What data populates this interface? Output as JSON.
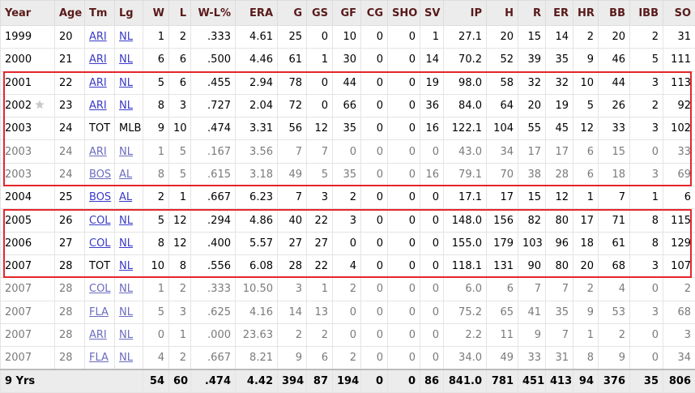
{
  "table": {
    "columns": [
      "Year",
      "Age",
      "Tm",
      "Lg",
      "W",
      "L",
      "W-L%",
      "ERA",
      "G",
      "GS",
      "GF",
      "CG",
      "SHO",
      "SV",
      "IP",
      "H",
      "R",
      "ER",
      "HR",
      "BB",
      "IBB",
      "SO"
    ],
    "rows": [
      [
        "1999",
        "20",
        "ARI",
        "NL",
        "1",
        "2",
        ".333",
        "4.61",
        "25",
        "0",
        "10",
        "0",
        "0",
        "1",
        "27.1",
        "20",
        "15",
        "14",
        "2",
        "20",
        "2",
        "31"
      ],
      [
        "2000",
        "21",
        "ARI",
        "NL",
        "6",
        "6",
        ".500",
        "4.46",
        "61",
        "1",
        "30",
        "0",
        "0",
        "14",
        "70.2",
        "52",
        "39",
        "35",
        "9",
        "46",
        "5",
        "111"
      ],
      [
        "2001",
        "22",
        "ARI",
        "NL",
        "5",
        "6",
        ".455",
        "2.94",
        "78",
        "0",
        "44",
        "0",
        "0",
        "19",
        "98.0",
        "58",
        "32",
        "32",
        "10",
        "44",
        "3",
        "113"
      ],
      [
        "2002",
        "23",
        "ARI",
        "NL",
        "8",
        "3",
        ".727",
        "2.04",
        "72",
        "0",
        "66",
        "0",
        "0",
        "36",
        "84.0",
        "64",
        "20",
        "19",
        "5",
        "26",
        "2",
        "92"
      ],
      [
        "2003",
        "24",
        "TOT",
        "MLB",
        "9",
        "10",
        ".474",
        "3.31",
        "56",
        "12",
        "35",
        "0",
        "0",
        "16",
        "122.1",
        "104",
        "55",
        "45",
        "12",
        "33",
        "3",
        "102"
      ],
      [
        "2003",
        "24",
        "ARI",
        "NL",
        "1",
        "5",
        ".167",
        "3.56",
        "7",
        "7",
        "0",
        "0",
        "0",
        "0",
        "43.0",
        "34",
        "17",
        "17",
        "6",
        "15",
        "0",
        "33"
      ],
      [
        "2003",
        "24",
        "BOS",
        "AL",
        "8",
        "5",
        ".615",
        "3.18",
        "49",
        "5",
        "35",
        "0",
        "0",
        "16",
        "79.1",
        "70",
        "38",
        "28",
        "6",
        "18",
        "3",
        "69"
      ],
      [
        "2004",
        "25",
        "BOS",
        "AL",
        "2",
        "1",
        ".667",
        "6.23",
        "7",
        "3",
        "2",
        "0",
        "0",
        "0",
        "17.1",
        "17",
        "15",
        "12",
        "1",
        "7",
        "1",
        "6"
      ],
      [
        "2005",
        "26",
        "COL",
        "NL",
        "5",
        "12",
        ".294",
        "4.86",
        "40",
        "22",
        "3",
        "0",
        "0",
        "0",
        "148.0",
        "156",
        "82",
        "80",
        "17",
        "71",
        "8",
        "115"
      ],
      [
        "2006",
        "27",
        "COL",
        "NL",
        "8",
        "12",
        ".400",
        "5.57",
        "27",
        "27",
        "0",
        "0",
        "0",
        "0",
        "155.0",
        "179",
        "103",
        "96",
        "18",
        "61",
        "8",
        "129"
      ],
      [
        "2007",
        "28",
        "TOT",
        "NL",
        "10",
        "8",
        ".556",
        "6.08",
        "28",
        "22",
        "4",
        "0",
        "0",
        "0",
        "118.1",
        "131",
        "90",
        "80",
        "20",
        "68",
        "3",
        "107"
      ],
      [
        "2007",
        "28",
        "COL",
        "NL",
        "1",
        "2",
        ".333",
        "10.50",
        "3",
        "1",
        "2",
        "0",
        "0",
        "0",
        "6.0",
        "6",
        "7",
        "7",
        "2",
        "4",
        "0",
        "2"
      ],
      [
        "2007",
        "28",
        "FLA",
        "NL",
        "5",
        "3",
        ".625",
        "4.16",
        "14",
        "13",
        "0",
        "0",
        "0",
        "0",
        "75.2",
        "65",
        "41",
        "35",
        "9",
        "53",
        "3",
        "68"
      ],
      [
        "2007",
        "28",
        "ARI",
        "NL",
        "0",
        "1",
        ".000",
        "23.63",
        "2",
        "2",
        "0",
        "0",
        "0",
        "0",
        "2.2",
        "11",
        "9",
        "7",
        "1",
        "2",
        "0",
        "3"
      ],
      [
        "2007",
        "28",
        "FLA",
        "NL",
        "4",
        "2",
        ".667",
        "8.21",
        "9",
        "6",
        "2",
        "0",
        "0",
        "0",
        "34.0",
        "49",
        "33",
        "31",
        "8",
        "9",
        "0",
        "34"
      ]
    ],
    "footer": {
      "label": "9 Yrs",
      "values": [
        "54",
        "60",
        ".474",
        "4.42",
        "394",
        "87",
        "194",
        "0",
        "0",
        "86",
        "841.0",
        "781",
        "451",
        "413",
        "94",
        "376",
        "35",
        "806"
      ]
    }
  }
}
